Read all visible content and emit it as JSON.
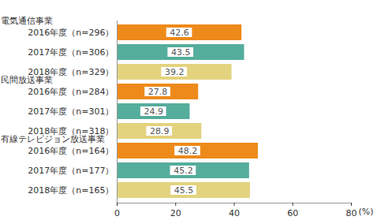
{
  "chart_data": {
    "type": "bar",
    "orientation": "horizontal",
    "data_labels": true,
    "grid": false,
    "xlim": [
      0,
      80
    ],
    "xticks": [
      0,
      20,
      40,
      60,
      80
    ],
    "x_label": "(%)",
    "groups": [
      {
        "name": "電気通信事業",
        "categories": [
          "2016年度（n=296）",
          "2017年度（n=306）",
          "2018年度（n=329）"
        ],
        "values": [
          42.6,
          43.5,
          39.2
        ],
        "colors": [
          "#ee8a1a",
          "#55ad9c",
          "#e3d37f"
        ]
      },
      {
        "name": "民間放送事業",
        "categories": [
          "2016年度（n=284）",
          "2017年度（n=301）",
          "2018年度（n=318）"
        ],
        "values": [
          27.8,
          24.9,
          28.9
        ],
        "colors": [
          "#ee8a1a",
          "#55ad9c",
          "#e3d37f"
        ]
      },
      {
        "name": "有線テレビジョン放送事業",
        "categories": [
          "2016年度（n=164）",
          "2017年度（n=177）",
          "2018年度（n=165）"
        ],
        "values": [
          48.2,
          45.2,
          45.5
        ],
        "colors": [
          "#ee8a1a",
          "#55ad9c",
          "#e3d37f"
        ]
      }
    ]
  }
}
